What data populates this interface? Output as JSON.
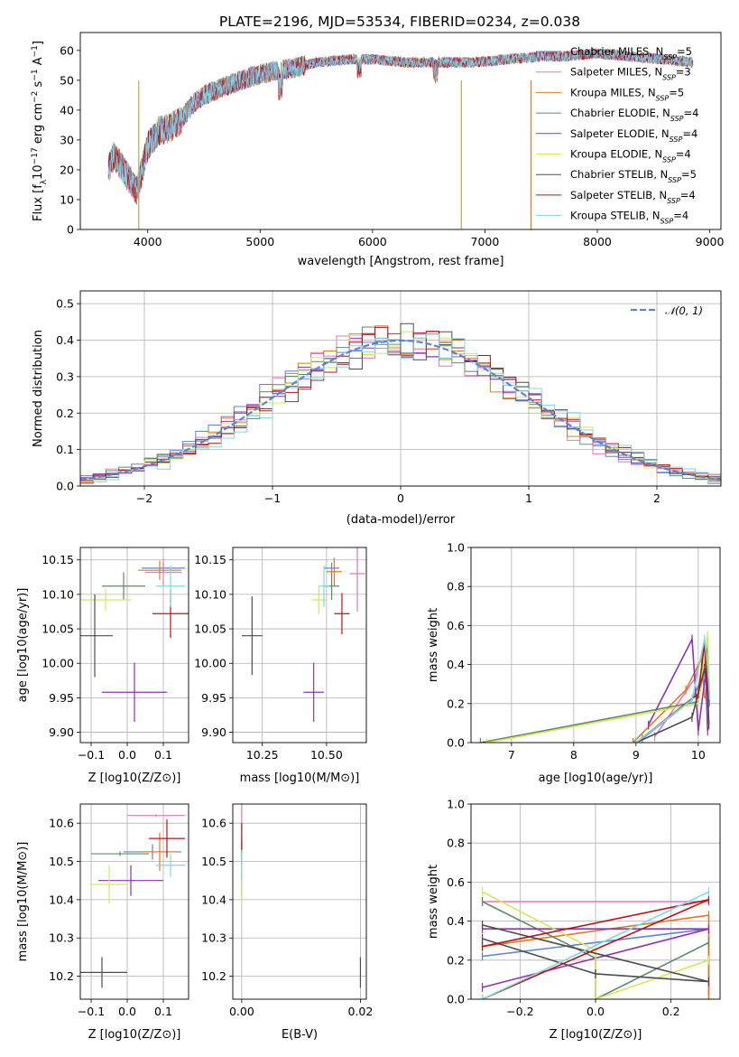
{
  "figure": {
    "title": "PLATE=2196, MJD=53534, FIBERID=0234, z=0.038"
  },
  "models": [
    {
      "label": "Chabrier MILES, N",
      "sub": "SSP",
      "suffix": "=5",
      "color": "#5b84d6"
    },
    {
      "label": "Salpeter MILES, N",
      "sub": "SSP",
      "suffix": "=3",
      "color": "#e377c2"
    },
    {
      "label": "Kroupa MILES, N",
      "sub": "SSP",
      "suffix": "=5",
      "color": "#e07b21"
    },
    {
      "label": "Chabrier ELODIE, N",
      "sub": "SSP",
      "suffix": "=4",
      "color": "#5f8a6a"
    },
    {
      "label": "Salpeter ELODIE, N",
      "sub": "SSP",
      "suffix": "=4",
      "color": "#8e33b5"
    },
    {
      "label": "Kroupa ELODIE, N",
      "sub": "SSP",
      "suffix": "=4",
      "color": "#d4e85a"
    },
    {
      "label": "Chabrier STELIB, N",
      "sub": "SSP",
      "suffix": "=5",
      "color": "#4d4d4d"
    },
    {
      "label": "Salpeter STELIB, N",
      "sub": "SSP",
      "suffix": "=4",
      "color": "#b81414"
    },
    {
      "label": "Kroupa STELIB, N",
      "sub": "SSP",
      "suffix": "=4",
      "color": "#7fd8e0"
    }
  ],
  "chart_data": [
    {
      "id": "spectrum",
      "type": "line",
      "xlabel": "wavelength [Angstrom, rest frame]",
      "ylabel_parts": [
        "Flux [f",
        "λ",
        "10",
        "−17",
        " erg cm",
        "−2",
        " s",
        "−1",
        " A",
        "−1",
        "]"
      ],
      "xlim": [
        3400,
        9100
      ],
      "ylim": [
        0,
        66
      ],
      "xticks": [
        4000,
        5000,
        6000,
        7000,
        8000,
        9000
      ],
      "yticks": [
        0,
        10,
        20,
        30,
        40,
        50,
        60
      ],
      "continuum": {
        "x": [
          3650,
          3700,
          3800,
          3900,
          3950,
          4000,
          4100,
          4200,
          4300,
          4400,
          4500,
          4700,
          4900,
          5100,
          5300,
          5500,
          5800,
          6000,
          6300,
          6600,
          6900,
          7200,
          7500,
          7700,
          8000,
          8300,
          8600,
          8850
        ],
        "y": [
          20,
          25,
          19,
          13,
          20,
          28,
          33,
          34,
          37,
          42,
          45,
          48,
          51,
          53,
          54,
          56,
          57,
          57,
          56,
          56,
          56,
          57,
          58,
          58,
          59,
          58,
          57,
          56
        ]
      },
      "dropouts": [
        {
          "series": "Kroupa ELODIE",
          "wavelength": 3920
        },
        {
          "series": "Kroupa ELODIE",
          "wavelength": 6790
        },
        {
          "series": "Kroupa MILES",
          "wavelength": 7410
        }
      ],
      "legend": "upper right",
      "grid": false
    },
    {
      "id": "residuals",
      "type": "histogram",
      "xlabel": "(data-model)/error",
      "ylabel": "Normed distribution",
      "xlim": [
        -2.5,
        2.5
      ],
      "ylim": [
        0,
        0.535
      ],
      "xticks": [
        -2,
        -1,
        0,
        1,
        2
      ],
      "yticks": [
        0.0,
        0.1,
        0.2,
        0.3,
        0.4,
        0.5
      ],
      "bin_width": 0.1,
      "reference_curve": {
        "name": "N(0,1)",
        "type": "normal",
        "mean": 0,
        "sigma": 1
      },
      "legend": "upper right",
      "grid": true
    },
    {
      "id": "age-vs-Z",
      "type": "errorbar",
      "xlabel": "Z [log10(Z/Z⊙)]",
      "ylabel": "age [log10(age/yr)]",
      "xlim": [
        -0.13,
        0.17
      ],
      "ylim": [
        9.885,
        10.168
      ],
      "xticks": [
        -0.1,
        0.0,
        0.1
      ],
      "yticks": [
        9.9,
        9.95,
        10.0,
        10.05,
        10.1,
        10.15
      ],
      "points": [
        {
          "x": 0.1,
          "xerr": 0.06,
          "y": 10.138,
          "yerr": 0.008
        },
        {
          "x": 0.1,
          "xerr": 0.05,
          "y": 10.132,
          "yerr": 0.02
        },
        {
          "x": 0.09,
          "xerr": 0.06,
          "y": 10.135,
          "yerr": 0.014
        },
        {
          "x": -0.01,
          "xerr": 0.06,
          "y": 10.112,
          "yerr": 0.02
        },
        {
          "x": 0.02,
          "xerr": 0.09,
          "y": 9.958,
          "yerr": 0.043
        },
        {
          "x": -0.06,
          "xerr": 0.07,
          "y": 10.092,
          "yerr": 0.016
        },
        {
          "x": -0.09,
          "xerr": 0.05,
          "y": 10.04,
          "yerr": 0.06
        },
        {
          "x": 0.12,
          "xerr": 0.05,
          "y": 10.072,
          "yerr": 0.035
        },
        {
          "x": 0.12,
          "xerr": 0.04,
          "y": 10.112,
          "yerr": 0.03
        }
      ],
      "grid": true
    },
    {
      "id": "age-vs-mass",
      "type": "errorbar",
      "xlabel": "mass [log10(M/M⊙)]",
      "xlim": [
        10.135,
        10.655
      ],
      "ylim": [
        9.885,
        10.168
      ],
      "xticks": [
        10.25,
        10.5
      ],
      "yticks": [
        9.9,
        9.95,
        10.0,
        10.05,
        10.1,
        10.15
      ],
      "points": [
        {
          "x": 10.52,
          "xerr": 0.03,
          "y": 10.138,
          "yerr": 0.008
        },
        {
          "x": 10.62,
          "xerr": 0.03,
          "y": 10.13,
          "yerr": 0.055
        },
        {
          "x": 10.53,
          "xerr": 0.03,
          "y": 10.133,
          "yerr": 0.02
        },
        {
          "x": 10.52,
          "xerr": 0.03,
          "y": 10.112,
          "yerr": 0.02
        },
        {
          "x": 10.45,
          "xerr": 0.04,
          "y": 9.958,
          "yerr": 0.043
        },
        {
          "x": 10.47,
          "xerr": 0.03,
          "y": 10.092,
          "yerr": 0.02
        },
        {
          "x": 10.21,
          "xerr": 0.04,
          "y": 10.04,
          "yerr": 0.057
        },
        {
          "x": 10.56,
          "xerr": 0.03,
          "y": 10.072,
          "yerr": 0.03
        },
        {
          "x": 10.49,
          "xerr": 0.02,
          "y": 10.112,
          "yerr": 0.03
        }
      ],
      "grid": true
    },
    {
      "id": "weight-vs-age",
      "type": "line",
      "xlabel": "age [log10(age/yr)]",
      "ylabel": "mass weight",
      "xlim": [
        6.35,
        10.35
      ],
      "ylim": [
        0,
        1
      ],
      "xticks": [
        7,
        8,
        9,
        10
      ],
      "yticks": [
        0.0,
        0.2,
        0.4,
        0.6,
        0.8,
        1.0
      ],
      "series": [
        {
          "x": [
            9.1,
            9.9,
            10.1,
            10.15,
            10.18
          ],
          "y": [
            0.02,
            0.22,
            0.36,
            0.35,
            0.21
          ]
        },
        {
          "x": [
            9.3,
            9.95,
            10.1,
            10.15
          ],
          "y": [
            0.03,
            0.33,
            0.5,
            0.35
          ]
        },
        {
          "x": [
            8.95,
            9.8,
            10.05,
            10.1,
            10.15
          ],
          "y": [
            0.0,
            0.27,
            0.43,
            0.25,
            0.2
          ]
        },
        {
          "x": [
            6.5,
            10.0,
            10.15,
            10.15
          ],
          "y": [
            0.0,
            0.21,
            0.49,
            0.29
          ]
        },
        {
          "x": [
            9.2,
            9.9,
            10.0,
            10.12,
            10.15
          ],
          "y": [
            0.09,
            0.53,
            0.06,
            0.36,
            0.06
          ]
        },
        {
          "x": [
            6.6,
            10.0,
            10.15,
            10.18
          ],
          "y": [
            0.0,
            0.2,
            0.55,
            0.25
          ]
        },
        {
          "x": [
            9.0,
            9.9,
            10.1,
            10.15,
            10.17
          ],
          "y": [
            0.0,
            0.13,
            0.38,
            0.31,
            0.09
          ]
        },
        {
          "x": [
            9.0,
            10.0,
            10.1,
            10.15
          ],
          "y": [
            0.0,
            0.25,
            0.51,
            0.27
          ]
        },
        {
          "x": [
            9.0,
            9.9,
            10.1,
            10.15,
            10.18
          ],
          "y": [
            0.0,
            0.22,
            0.53,
            0.39,
            0.24
          ]
        }
      ],
      "grid": true
    },
    {
      "id": "mass-vs-Z",
      "type": "errorbar",
      "xlabel": "Z [log10(Z/Z⊙)]",
      "ylabel": "mass [log10(M/M⊙)]",
      "xlim": [
        -0.13,
        0.17
      ],
      "ylim": [
        10.14,
        10.65
      ],
      "xticks": [
        -0.1,
        0.0,
        0.1
      ],
      "yticks": [
        10.2,
        10.3,
        10.4,
        10.5,
        10.6
      ],
      "points": [
        {
          "x": 0.07,
          "xerr": 0.08,
          "y": 10.525,
          "yerr": 0.02
        },
        {
          "x": 0.08,
          "xerr": 0.08,
          "y": 10.62,
          "yerr": 0.003
        },
        {
          "x": 0.09,
          "xerr": 0.05,
          "y": 10.525,
          "yerr": 0.05
        },
        {
          "x": -0.02,
          "xerr": 0.08,
          "y": 10.52,
          "yerr": 0.006
        },
        {
          "x": 0.01,
          "xerr": 0.09,
          "y": 10.45,
          "yerr": 0.04
        },
        {
          "x": -0.05,
          "xerr": 0.05,
          "y": 10.44,
          "yerr": 0.05
        },
        {
          "x": -0.07,
          "xerr": 0.07,
          "y": 10.21,
          "yerr": 0.04
        },
        {
          "x": 0.11,
          "xerr": 0.05,
          "y": 10.56,
          "yerr": 0.05
        },
        {
          "x": 0.12,
          "xerr": 0.04,
          "y": 10.49,
          "yerr": 0.03
        }
      ],
      "grid": true
    },
    {
      "id": "mass-vs-ebv",
      "type": "errorbar",
      "xlabel": "E(B-V)",
      "xlim": [
        -0.0015,
        0.021
      ],
      "ylim": [
        10.14,
        10.65
      ],
      "xticks": [
        0.0,
        0.02
      ],
      "yticks": [
        10.2,
        10.3,
        10.4,
        10.5,
        10.6
      ],
      "points": [
        {
          "x": 0.0,
          "y": 10.52,
          "yerr": 0.02
        },
        {
          "x": 0.0,
          "y": 10.62,
          "yerr": 0.04
        },
        {
          "x": 0.0,
          "y": 10.52,
          "yerr": 0.05
        },
        {
          "x": 0.0,
          "y": 10.52,
          "yerr": 0.03
        },
        {
          "x": 0.0,
          "y": 10.45,
          "yerr": 0.04
        },
        {
          "x": 0.0,
          "y": 10.44,
          "yerr": 0.05
        },
        {
          "x": 0.02,
          "y": 10.21,
          "yerr": 0.04
        },
        {
          "x": 0.0,
          "y": 10.56,
          "yerr": 0.04
        },
        {
          "x": 0.0,
          "y": 10.49,
          "yerr": 0.04
        }
      ],
      "grid": true
    },
    {
      "id": "weight-vs-Z",
      "type": "line",
      "xlabel": "Z [log10(Z/Z⊙)]",
      "ylabel": "mass weight",
      "xlim": [
        -0.33,
        0.33
      ],
      "ylim": [
        0,
        1
      ],
      "xticks": [
        -0.2,
        0.0,
        0.2
      ],
      "yticks": [
        0.0,
        0.2,
        0.4,
        0.6,
        0.8,
        1.0
      ],
      "series": [
        {
          "x": [
            -0.3,
            0.3,
            0.3
          ],
          "y": [
            0.22,
            0.36,
            0.02
          ]
        },
        {
          "x": [
            -0.3,
            0.3
          ],
          "y": [
            0.5,
            0.5
          ]
        },
        {
          "x": [
            -0.3,
            0.3,
            0.3
          ],
          "y": [
            0.27,
            0.43,
            0.0
          ]
        },
        {
          "x": [
            -0.3,
            0.0,
            0.0,
            0.3
          ],
          "y": [
            0.5,
            0.21,
            0.0,
            0.29
          ]
        },
        {
          "x": [
            -0.3,
            0.3,
            -0.3
          ],
          "y": [
            0.06,
            0.36,
            0.36
          ]
        },
        {
          "x": [
            -0.3,
            0.0,
            0.0,
            0.3
          ],
          "y": [
            0.55,
            0.25,
            0.0,
            0.2
          ]
        },
        {
          "x": [
            -0.3,
            0.0,
            0.3,
            -0.3
          ],
          "y": [
            0.31,
            0.13,
            0.09,
            0.38
          ]
        },
        {
          "x": [
            -0.3,
            0.3,
            -0.3
          ],
          "y": [
            0.27,
            0.51,
            0.0
          ]
        },
        {
          "x": [
            -0.3,
            0.3
          ],
          "y": [
            0.0,
            0.55
          ]
        }
      ],
      "grid": true
    }
  ]
}
